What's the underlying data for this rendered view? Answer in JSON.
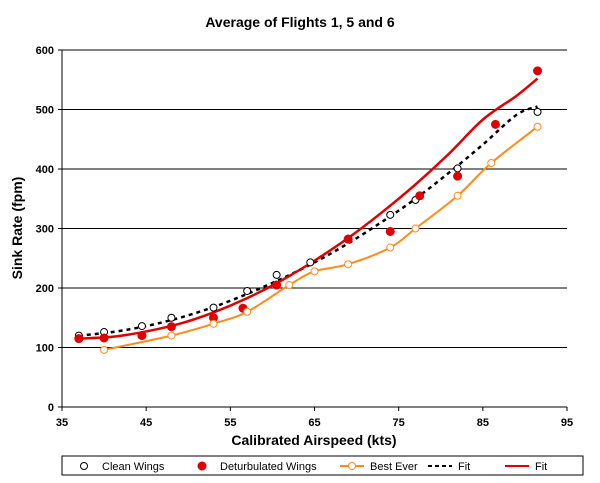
{
  "chart_data": {
    "type": "line",
    "title": "Average of Flights 1, 5 and 6",
    "xlabel": "Calibrated Airspeed (kts)",
    "ylabel": "Sink Rate (fpm)",
    "xlim": [
      35,
      95
    ],
    "ylim": [
      0,
      600
    ],
    "xticks": [
      35,
      45,
      55,
      65,
      75,
      85,
      95
    ],
    "yticks": [
      0,
      100,
      200,
      300,
      400,
      500,
      600
    ],
    "grid": "horizontal",
    "legend_position": "bottom",
    "series": [
      {
        "name": "Clean Wings",
        "style": "marker-open-circle",
        "color": "#000000",
        "x": [
          37,
          40,
          44.5,
          48,
          53,
          57,
          60.5,
          64.5,
          69,
          74,
          77,
          82,
          91.5
        ],
        "y": [
          120,
          126,
          136,
          150,
          167,
          195,
          222,
          243,
          283,
          323,
          348,
          401,
          496
        ]
      },
      {
        "name": "Deturbulated Wings",
        "style": "marker-filled-circle",
        "color": "#e00000",
        "x": [
          37,
          40,
          44.5,
          48,
          53,
          56.5,
          60.5,
          69,
          74,
          77.5,
          82,
          86.5,
          91.5
        ],
        "y": [
          115,
          116,
          120,
          135,
          150,
          166,
          205,
          282,
          295,
          355,
          388,
          475,
          565
        ]
      },
      {
        "name": "Best Ever",
        "style": "line-open-circle",
        "color": "#ff8c1a",
        "x": [
          40,
          48,
          53,
          57,
          62,
          65,
          69,
          74,
          77,
          82,
          86,
          91.5
        ],
        "y": [
          96,
          120,
          140,
          160,
          205,
          228,
          240,
          268,
          300,
          355,
          410,
          471
        ]
      },
      {
        "name": "Fit",
        "style": "dashed",
        "color": "#000000",
        "x": [
          37,
          41,
          45,
          49,
          53,
          57,
          61,
          65,
          69,
          73,
          77,
          81,
          85,
          89,
          91.5
        ],
        "y": [
          120,
          126,
          136,
          150,
          168,
          190,
          215,
          243,
          275,
          311,
          350,
          394,
          441,
          491,
          505
        ]
      },
      {
        "name": "Fit",
        "style": "solid",
        "color": "#e00000",
        "x": [
          37,
          41,
          45,
          49,
          53,
          57,
          61,
          65,
          69,
          73,
          77,
          81,
          85,
          89,
          91.5
        ],
        "y": [
          115,
          118,
          127,
          140,
          159,
          183,
          212,
          246,
          284,
          327,
          374,
          426,
          483,
          523,
          552
        ]
      }
    ]
  }
}
